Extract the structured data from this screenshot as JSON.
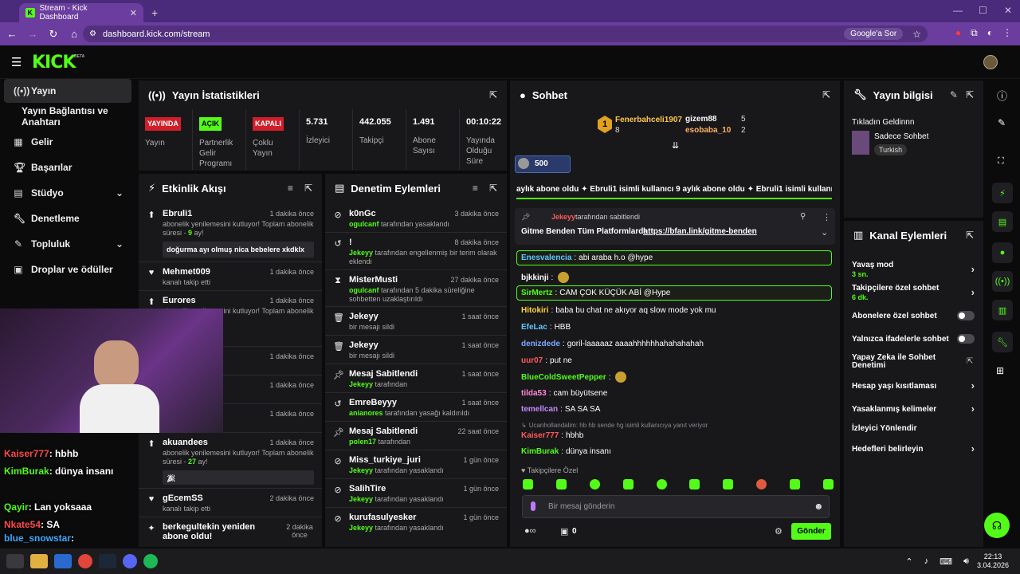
{
  "browser": {
    "tab_title": "Stream - Kick Dashboard",
    "url": "dashboard.kick.com/stream",
    "search_chip": "Google'a Sor"
  },
  "brand": {
    "logo": "KICK",
    "beta": "BETA"
  },
  "sidebar": {
    "items": [
      {
        "label": "Yayın",
        "icon": "broadcast-icon"
      },
      {
        "label": "Yayın Bağlantısı ve Anahtarı",
        "icon": ""
      },
      {
        "label": "Gelir",
        "icon": "revenue-icon"
      },
      {
        "label": "Başarılar",
        "icon": "trophy-icon"
      },
      {
        "label": "Stüdyo",
        "icon": "studio-icon"
      },
      {
        "label": "Denetleme",
        "icon": "wrench-icon"
      },
      {
        "label": "Topluluk",
        "icon": "community-icon"
      },
      {
        "label": "Droplar ve ödüller",
        "icon": "gift-icon"
      }
    ]
  },
  "stats": {
    "title": "Yayın İstatistikleri",
    "items": [
      {
        "badge": "YAYINDA",
        "label": "Yayın"
      },
      {
        "badge": "AÇIK",
        "label": "Partnerlik Gelir Programı"
      },
      {
        "badge": "KAPALI",
        "label": "Çoklu Yayın"
      },
      {
        "value": "5.731",
        "label": "İzleyici"
      },
      {
        "value": "442.055",
        "label": "Takipçi"
      },
      {
        "value": "1.491",
        "label": "Abone Sayısı"
      },
      {
        "value": "00:10:22",
        "label": "Yayında Olduğu Süre"
      }
    ]
  },
  "activity": {
    "title": "Etkinlik Akışı",
    "items": [
      {
        "name": "Ebruli1",
        "time": "1 dakika önce",
        "desc_a": "abonelik yenilemesini kutluyor! Toplam abonelik süresi - ",
        "desc_b": "9",
        "desc_c": " ay!",
        "msg": "doğurma ayı olmuş nica bebelere xkdklx"
      },
      {
        "name": "Mehmet009",
        "time": "1 dakika önce",
        "desc_a": "kanalı takip etti"
      },
      {
        "name": "Eurores",
        "time": "1 dakika önce",
        "desc_a": "abonelik yenilemesini kutluyor! Toplam abonelik"
      },
      {
        "name": "",
        "time": "1 dakika önce"
      },
      {
        "name": "",
        "time": "1 dakika önce"
      },
      {
        "name": "",
        "time": "1 dakika önce"
      },
      {
        "name": "akuandees",
        "time": "1 dakika önce",
        "desc_a": "abonelik yenilemesini kutluyor! Toplam abonelik süresi - ",
        "desc_b": "27",
        "desc_c": " ay!"
      },
      {
        "name": "gEcemSS",
        "time": "2 dakika önce",
        "desc_a": "kanalı takip etti"
      },
      {
        "name": "berkegultekin yeniden abone oldu!",
        "time": "2 dakika önce"
      }
    ]
  },
  "moderation": {
    "title": "Denetim Eylemleri",
    "items": [
      {
        "name": "k0nGc",
        "time": "3 dakika önce",
        "who": "oguIcanf",
        "desc": " tarafından yasaklandı"
      },
      {
        "name": "!",
        "time": "8 dakika önce",
        "who": "Jekeyy",
        "desc": " tarafından engellenmiş bir terim olarak eklendi"
      },
      {
        "name": "MisterMusti",
        "time": "27 dakika önce",
        "who": "oguIcanf",
        "desc": " tarafından 5 dakika süreliğine sohbetten uzaklaştırıldı"
      },
      {
        "name": "Jekeyy",
        "time": "1 saat önce",
        "who": "",
        "desc": "bir mesajı sildi"
      },
      {
        "name": "Jekeyy",
        "time": "1 saat önce",
        "who": "",
        "desc": "bir mesajı sildi"
      },
      {
        "name": "Mesaj Sabitlendi",
        "time": "1 saat önce",
        "who": "Jekeyy",
        "desc": " tarafından"
      },
      {
        "name": "EmreBeyyy",
        "time": "1 saat önce",
        "who": "anianores",
        "desc": " tarafından yasağı kaldırıldı"
      },
      {
        "name": "Mesaj Sabitlendi",
        "time": "22 saat önce",
        "who": "polen17",
        "desc": " tarafından"
      },
      {
        "name": "Miss_turkiye_juri",
        "time": "1 gün önce",
        "who": "Jekeyy",
        "desc": " tarafından yasaklandı"
      },
      {
        "name": "SalihTire",
        "time": "1 gün önce",
        "who": "Jekeyy",
        "desc": " tarafından yasaklandı"
      },
      {
        "name": "kurufasulyesker",
        "time": "1 gün önce",
        "who": "Jekeyy",
        "desc": " tarafından yasaklandı"
      }
    ]
  },
  "chat": {
    "title": "Sohbet",
    "leaders": [
      {
        "rank": "1",
        "name": "Fenerbahceli1907",
        "count": "8"
      },
      {
        "name": "gizem88",
        "count": "5"
      },
      {
        "name": "esobaba_10",
        "count": "2"
      }
    ],
    "gift_count": "500",
    "ticker": "aylık abone oldu  ✦ Ebruli1 isimli kullanıcı 9 aylık abone oldu  ✦ Ebruli1 isimli kullanıcı 9",
    "pinned": {
      "by": "Jekeyy",
      "by_suffix": "tarafından sabitlendi",
      "text": "Gitme Benden Tüm Platformlarda: ",
      "link": "https://bfan.link/gitme-benden"
    },
    "messages": [
      {
        "user": "Enesvalencia",
        "color": "#5ec8ff",
        "text": "abi araba h.o @hype",
        "hl": true
      },
      {
        "user": "bjkkinji",
        "color": "#ffffff",
        "text": ""
      },
      {
        "user": "SirMertz",
        "color": "#53fc18",
        "text": "CAM ÇOK KÜÇÜK ABİ @Hype",
        "hl": true
      },
      {
        "user": "Hitokiri",
        "color": "#ffd23c",
        "text": "baba bu chat ne akıyor aq slow mode yok mu"
      },
      {
        "user": "EfeLac",
        "color": "#5ec8ff",
        "text": "HBB"
      },
      {
        "user": "denizdede",
        "color": "#7ea8ff",
        "text": "goril-laaaaaz aaaahhhhhhahahahahah"
      },
      {
        "user": "uur07",
        "color": "#ff5a5a",
        "text": "put ne"
      },
      {
        "user": "BlueColdSweetPepper",
        "color": "#53fc18",
        "text": ""
      },
      {
        "user": "tilda53",
        "color": "#ff8ad8",
        "text": "cam büyütsene"
      },
      {
        "user": "temellcan",
        "color": "#c08aff",
        "text": "SA SA SA"
      },
      {
        "user": "Kaiser777",
        "color": "#ff5a5a",
        "text": "hbhb",
        "reply": "Ucanhollandalim: hb hb sende hg isimli kullanıcıya yanıt veriyor"
      },
      {
        "user": "KimBurak",
        "color": "#53fc18",
        "text": "dünya insanı"
      }
    ],
    "followers_only": "Takipçilere Özel",
    "input_placeholder": "Bir mesaj gönderin",
    "points": "0",
    "send_label": "Gönder"
  },
  "stream_info": {
    "title": "Yayın bilgisi",
    "stream_title": "Tıkladın Geldinnn",
    "category": "Sadece Sohbet",
    "tag": "Turkish"
  },
  "channel_actions": {
    "title": "Kanal Eylemleri",
    "items": [
      {
        "label": "Yavaş mod",
        "sub": "3 sn."
      },
      {
        "label": "Takipçilere özel sohbet",
        "sub": "6 dk."
      },
      {
        "label": "Abonelere özel sohbet"
      },
      {
        "label": "Yalnızca ifadelerle sohbet"
      },
      {
        "label": "Yapay Zeka ile Sohbet Denetimi"
      },
      {
        "label": "Hesap yaşı kısıtlaması"
      },
      {
        "label": "Yasaklanmış kelimeler"
      },
      {
        "label": "İzleyici Yönlendir"
      },
      {
        "label": "Hedefleri belirleyin"
      }
    ]
  },
  "overlay_chat": [
    {
      "user": "Kaiser777",
      "text": ": hbhb",
      "color": "#ff4a4a"
    },
    {
      "user": "KimBurak",
      "text": ": dünya insanı",
      "color": "#53fc18"
    },
    {
      "user": "Qayir",
      "text": ": Lan yoksaaa",
      "color": "#53fc18"
    },
    {
      "user": "Nkate54",
      "text": ": SA",
      "color": "#ff4a4a"
    },
    {
      "user": "blue_snowstar",
      "text": ":",
      "color": "#3ea8ff"
    }
  ],
  "clock": {
    "time": "22:13",
    "date": "3.04.2026"
  }
}
